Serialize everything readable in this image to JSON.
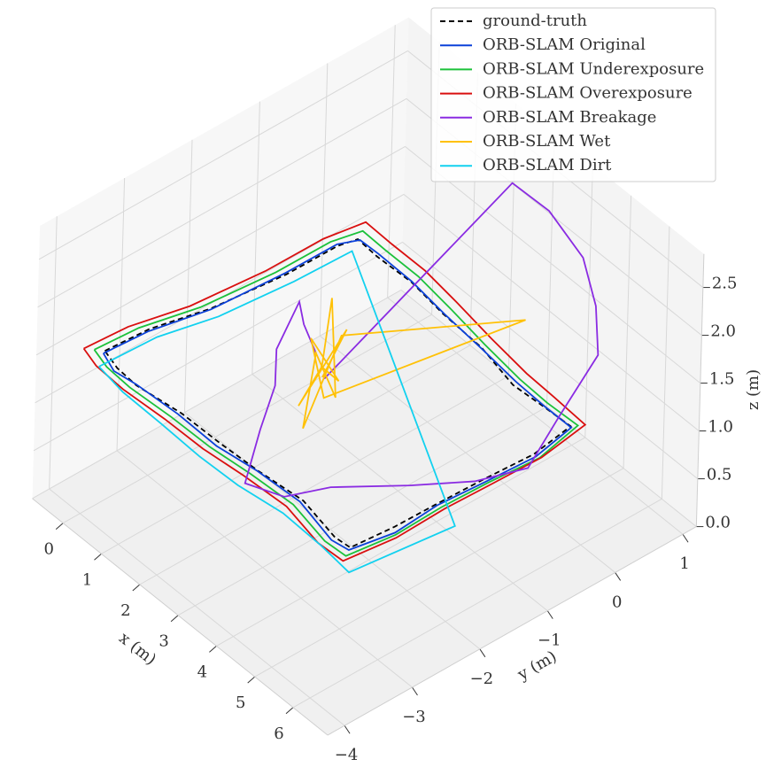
{
  "chart_data": {
    "type": "line3d",
    "xlabel": "x (m)",
    "ylabel": "y (m)",
    "zlabel": "z (m)",
    "xlim": [
      -0.8,
      6.9
    ],
    "ylim": [
      -4.25,
      1.2
    ],
    "zlim": [
      0,
      2.85
    ],
    "xticks": [
      0,
      1,
      2,
      3,
      4,
      5,
      6
    ],
    "yticks": [
      {
        "value": -4,
        "label": "−4"
      },
      {
        "value": -3,
        "label": "−3"
      },
      {
        "value": -2,
        "label": "−2"
      },
      {
        "value": -1,
        "label": "−1"
      },
      0,
      1
    ],
    "zticks": [
      {
        "value": 0,
        "label": "0.0"
      },
      0.5,
      {
        "value": 1,
        "label": "1.0"
      },
      1.5,
      {
        "value": 2,
        "label": "2.0"
      },
      2.5
    ],
    "grid": true,
    "legend": "upper right",
    "series": [
      {
        "name": "ground-truth",
        "color": "#000000",
        "linestyle": "dashed",
        "x": [
          -0.5,
          -0.4,
          -0.2,
          0.0,
          0.1,
          0.1,
          0.6,
          1.5,
          2.5,
          3.5,
          4.5,
          5.3,
          6.0,
          6.1,
          6.0,
          6.0,
          6.0,
          5.9,
          5.5,
          4.5,
          3.5,
          2.5,
          1.5,
          0.5,
          0.0,
          -0.5
        ],
        "y": [
          -3.4,
          -2.8,
          -2.0,
          -1.0,
          -0.3,
          0.0,
          0.0,
          0.0,
          -0.1,
          -0.1,
          -0.2,
          -0.2,
          -0.2,
          -0.8,
          -1.5,
          -2.2,
          -2.8,
          -3.4,
          -3.4,
          -3.3,
          -3.4,
          -3.4,
          -3.4,
          -3.5,
          -3.5,
          -3.4
        ],
        "z": [
          1.3,
          1.32,
          1.28,
          1.3,
          1.35,
          1.3,
          1.28,
          1.3,
          1.33,
          1.3,
          1.27,
          1.3,
          1.32,
          1.3,
          1.28,
          1.3,
          1.31,
          1.3,
          1.28,
          1.3,
          1.33,
          1.3,
          1.29,
          1.3,
          1.32,
          1.3
        ]
      },
      {
        "name": "ORB-SLAM Original",
        "color": "#0b41d9",
        "linestyle": "solid",
        "x": [
          -0.45,
          -0.35,
          -0.2,
          -0.02,
          0.08,
          0.12,
          0.6,
          1.5,
          2.5,
          3.5,
          4.5,
          5.3,
          6.05,
          6.15,
          6.05,
          6.05,
          6.1,
          5.95,
          5.5,
          4.5,
          3.5,
          2.5,
          1.5,
          0.5,
          0.0,
          -0.45
        ],
        "y": [
          -3.45,
          -2.85,
          -2.0,
          -1.0,
          -0.3,
          0.02,
          0.02,
          0.0,
          -0.08,
          -0.1,
          -0.15,
          -0.2,
          -0.22,
          -0.8,
          -1.5,
          -2.2,
          -2.85,
          -3.45,
          -3.45,
          -3.35,
          -3.42,
          -3.45,
          -3.45,
          -3.5,
          -3.55,
          -3.45
        ],
        "z": [
          1.31,
          1.33,
          1.27,
          1.31,
          1.36,
          1.29,
          1.3,
          1.31,
          1.32,
          1.29,
          1.28,
          1.31,
          1.33,
          1.29,
          1.27,
          1.31,
          1.3,
          1.31,
          1.27,
          1.31,
          1.34,
          1.29,
          1.3,
          1.31,
          1.31,
          1.31
        ]
      },
      {
        "name": "ORB-SLAM Underexposure",
        "color": "#1bc13a",
        "linestyle": "solid",
        "x": [
          -0.6,
          -0.5,
          -0.3,
          -0.1,
          0.0,
          0.05,
          0.6,
          1.5,
          2.5,
          3.5,
          4.5,
          5.3,
          6.1,
          6.25,
          6.15,
          6.15,
          6.2,
          6.05,
          5.5,
          4.5,
          3.5,
          2.5,
          1.5,
          0.5,
          -0.1,
          -0.6
        ],
        "y": [
          -3.5,
          -2.9,
          -2.1,
          -1.1,
          -0.35,
          0.1,
          0.12,
          0.1,
          0.0,
          -0.05,
          -0.1,
          -0.15,
          -0.15,
          -0.8,
          -1.5,
          -2.2,
          -2.9,
          -3.55,
          -3.55,
          -3.45,
          -3.52,
          -3.55,
          -3.55,
          -3.6,
          -3.6,
          -3.5
        ],
        "z": [
          1.32,
          1.34,
          1.3,
          1.33,
          1.38,
          1.33,
          1.3,
          1.32,
          1.35,
          1.31,
          1.29,
          1.32,
          1.34,
          1.31,
          1.3,
          1.32,
          1.33,
          1.32,
          1.3,
          1.32,
          1.35,
          1.32,
          1.31,
          1.32,
          1.34,
          1.32
        ]
      },
      {
        "name": "ORB-SLAM Overexposure",
        "color": "#d90f0f",
        "linestyle": "solid",
        "x": [
          -0.7,
          -0.6,
          -0.4,
          -0.2,
          -0.1,
          -0.05,
          0.6,
          1.5,
          2.5,
          3.5,
          4.5,
          5.3,
          6.2,
          6.3,
          6.25,
          6.25,
          6.3,
          6.15,
          5.5,
          4.5,
          3.5,
          2.5,
          1.5,
          0.5,
          -0.2,
          -0.7
        ],
        "y": [
          -3.6,
          -3.0,
          -2.2,
          -1.2,
          -0.4,
          0.2,
          0.22,
          0.2,
          0.1,
          0.05,
          0.0,
          -0.05,
          -0.1,
          -0.8,
          -1.5,
          -2.2,
          -2.95,
          -3.65,
          -3.65,
          -3.55,
          -3.62,
          -3.65,
          -3.65,
          -3.7,
          -3.7,
          -3.6
        ],
        "z": [
          1.34,
          1.36,
          1.32,
          1.35,
          1.4,
          1.35,
          1.32,
          1.34,
          1.37,
          1.33,
          1.31,
          1.34,
          1.36,
          1.33,
          1.32,
          1.34,
          1.35,
          1.34,
          1.32,
          1.34,
          1.37,
          1.34,
          1.33,
          1.34,
          1.36,
          1.34
        ]
      },
      {
        "name": "ORB-SLAM Breakage",
        "color": "#8a2be2",
        "linestyle": "solid",
        "x": [
          2.4,
          3.39,
          3.6,
          4.5,
          5.2,
          5.8,
          6.2,
          6.3,
          5.8,
          5.0,
          4.0,
          3.5,
          3.0,
          2.5,
          2.0,
          1.5,
          1.2,
          1.5,
          2.0
        ],
        "y": [
          -1.8,
          0.36,
          0.8,
          0.8,
          0.6,
          0.3,
          -0.5,
          -1.0,
          -1.5,
          -2.0,
          -2.6,
          -3.0,
          -3.3,
          -2.8,
          -2.3,
          -2.0,
          -1.5,
          -1.6,
          -1.7
        ],
        "z": [
          1.3,
          2.8,
          2.4,
          2.2,
          2.0,
          1.8,
          1.6,
          1.3,
          1.2,
          1.1,
          1.0,
          0.9,
          1.0,
          1.2,
          1.3,
          1.4,
          1.6,
          1.5,
          1.4
        ]
      },
      {
        "name": "ORB-SLAM Wet",
        "color": "#ffc107",
        "linestyle": "solid",
        "x": [
          2.35,
          2.6,
          2.1,
          2.5,
          2.2,
          2.7,
          2.0,
          2.4,
          2.3,
          3.45,
          2.4,
          2.2,
          2.6,
          2.3
        ],
        "y": [
          -1.8,
          -1.6,
          -2.0,
          -1.9,
          -1.6,
          -1.8,
          -1.7,
          -2.1,
          -1.5,
          0.58,
          -1.8,
          -1.9,
          -1.7,
          -1.8
        ],
        "z": [
          1.3,
          1.8,
          1.0,
          1.5,
          2.0,
          1.2,
          1.4,
          0.9,
          1.6,
          1.3,
          1.1,
          1.7,
          1.3,
          1.4
        ]
      },
      {
        "name": "ORB-SLAM Dirt",
        "color": "#12d1ef",
        "linestyle": "solid",
        "x": [
          -0.3,
          -0.2,
          0.0,
          0.2,
          0.3,
          6.62,
          6.36,
          5.5,
          4.5,
          3.5,
          2.5,
          1.5,
          0.5,
          -0.3
        ],
        "y": [
          -3.6,
          -2.8,
          -2.0,
          -1.0,
          -0.2,
          -2.26,
          -3.68,
          -3.6,
          -3.6,
          -3.7,
          -3.7,
          -3.7,
          -3.7,
          -3.6
        ],
        "z": [
          1.28,
          1.3,
          1.26,
          1.29,
          1.32,
          1.3,
          1.3,
          1.27,
          1.29,
          1.3,
          1.28,
          1.3,
          1.31,
          1.28
        ]
      }
    ]
  }
}
